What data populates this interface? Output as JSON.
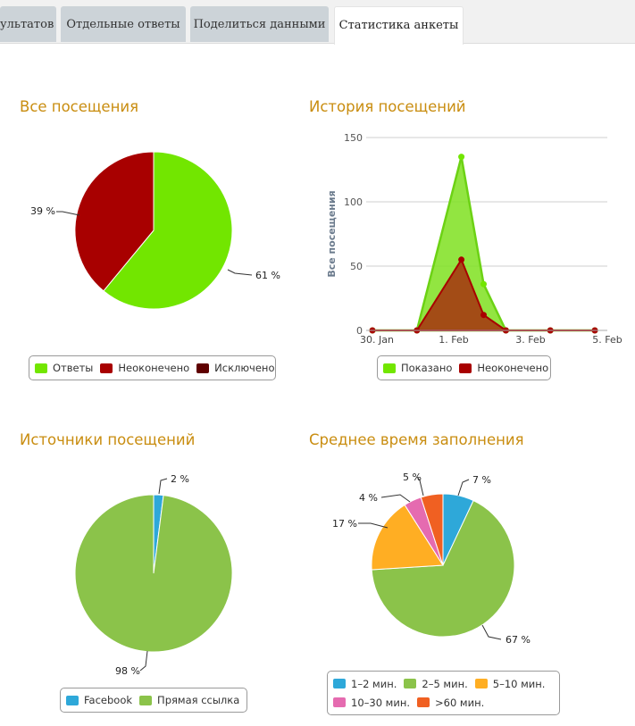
{
  "tabs": [
    {
      "label": "ультатов"
    },
    {
      "label": "Отдельные ответы"
    },
    {
      "label": "Поделиться данными"
    },
    {
      "label": "Статистика анкеты"
    }
  ],
  "titles": {
    "visits": "Все посещения",
    "history": "История посещений",
    "sources": "Источники посещений",
    "time": "Среднее время заполнения"
  },
  "colors": {
    "answers": "#72e600",
    "unfinished": "#a80000",
    "excluded": "#5f0000",
    "facebook": "#2ea8d9",
    "direct": "#8bc34a",
    "t1": "#2ea8d9",
    "t2": "#8bc34a",
    "t3": "#ffae23",
    "t4": "#e56bb0",
    "t5": "#f06022",
    "title": "#c98d10"
  },
  "chart_data": [
    {
      "type": "pie",
      "title": "Все посещения",
      "labels": [
        "Ответы",
        "Неоконечено",
        "Исключено"
      ],
      "values": [
        61,
        39,
        0
      ],
      "label_texts": [
        "61 %",
        "39 %"
      ],
      "legend": [
        "Ответы",
        "Неоконечено",
        "Исключено"
      ]
    },
    {
      "type": "area",
      "title": "История посещений",
      "ylabel": "Все посещения",
      "ylim": [
        0,
        150
      ],
      "y_ticks": [
        "0",
        "50",
        "100",
        "150"
      ],
      "x_ticks": [
        "30. Jan",
        "1. Feb",
        "3. Feb",
        "5. Feb"
      ],
      "series": [
        {
          "name": "Показано",
          "x": [
            0,
            1,
            2,
            2.5,
            3,
            4,
            5
          ],
          "values": [
            0,
            0,
            135,
            36,
            0,
            0,
            0
          ]
        },
        {
          "name": "Неоконечено",
          "x": [
            0,
            1,
            2,
            2.5,
            3,
            4,
            5
          ],
          "values": [
            0,
            0,
            55,
            12,
            0,
            0,
            0
          ]
        }
      ],
      "legend": [
        "Показано",
        "Неоконечено"
      ]
    },
    {
      "type": "pie",
      "title": "Источники посещений",
      "labels": [
        "Facebook",
        "Прямая ссылка"
      ],
      "values": [
        2,
        98
      ],
      "label_texts": [
        "2 %",
        "98 %"
      ],
      "legend": [
        "Facebook",
        "Прямая ссылка"
      ]
    },
    {
      "type": "pie",
      "title": "Среднее время заполнения",
      "labels": [
        "1–2 мин.",
        "2–5 мин.",
        "5–10 мин.",
        "10–30 мин.",
        ">60 мин."
      ],
      "values": [
        7,
        67,
        17,
        4,
        5
      ],
      "label_texts": [
        "7 %",
        "67 %",
        "17 %",
        "4 %",
        "5 %"
      ],
      "legend": [
        "1–2 мин.",
        "2–5 мин.",
        "5–10 мин.",
        "10–30 мин.",
        ">60 мин."
      ]
    }
  ]
}
